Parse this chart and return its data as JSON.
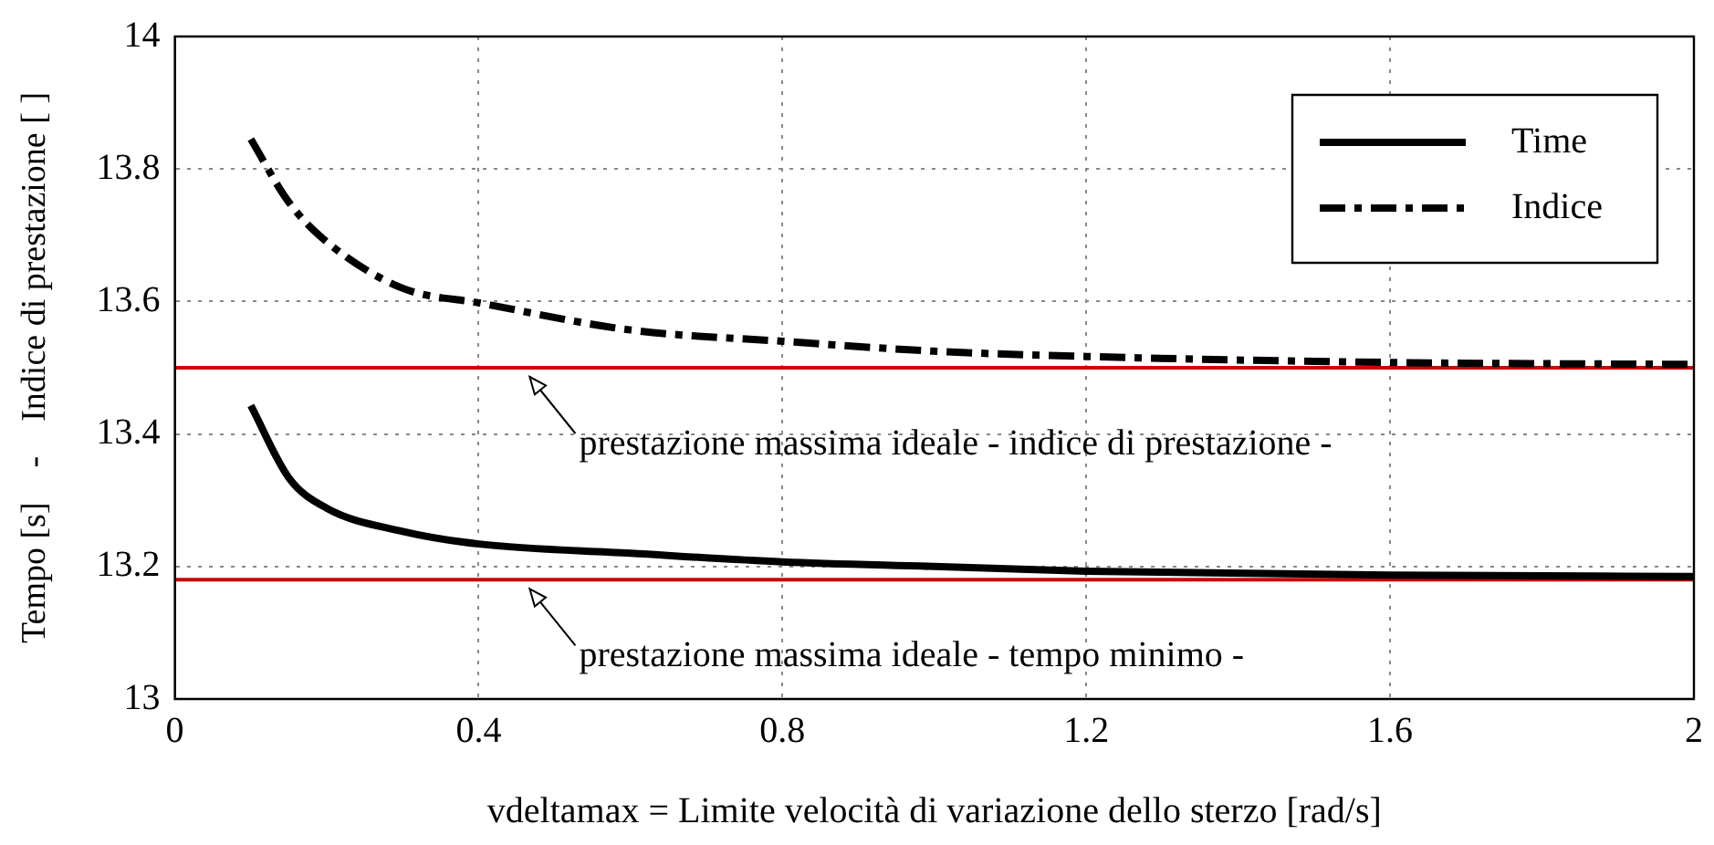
{
  "chart_data": {
    "type": "line",
    "xlabel": "vdeltamax = Limite velocità di variazione dello sterzo [rad/s]",
    "ylabel": "Tempo [s]    -    Indice di prestazione [ ]",
    "x": [
      0.1,
      0.15,
      0.2,
      0.3,
      0.4,
      0.6,
      0.8,
      1.0,
      1.2,
      1.6,
      2.0
    ],
    "series": [
      {
        "name": "Time",
        "color": "#000000",
        "line_style": "solid",
        "values": [
          13.443,
          13.334,
          13.288,
          13.253,
          13.234,
          13.22,
          13.207,
          13.2,
          13.193,
          13.187,
          13.185
        ]
      },
      {
        "name": "Indice",
        "color": "#000000",
        "line_style": "dashed",
        "values": [
          13.845,
          13.75,
          13.69,
          13.62,
          13.598,
          13.557,
          13.54,
          13.525,
          13.517,
          13.508,
          13.505
        ]
      }
    ],
    "xlim": [
      0,
      2
    ],
    "xticks": [
      0,
      0.4,
      0.8,
      1.2,
      1.6,
      2
    ],
    "ylim": [
      13,
      14
    ],
    "yticks": [
      13,
      13.2,
      13.4,
      13.6,
      13.8,
      14
    ],
    "ref_lines": [
      {
        "axis": "y",
        "value": 13.5,
        "color": "#cc0000"
      },
      {
        "axis": "y",
        "value": 13.18,
        "color": "#cc0000"
      }
    ],
    "annotations": [
      {
        "text": "prestazione massima ideale - indice di prestazione -",
        "x": 0.46,
        "y": 13.5
      },
      {
        "text": "prestazione massima ideale - tempo minimo -",
        "x": 0.46,
        "y": 13.18
      }
    ],
    "grid": true,
    "legend": "top right",
    "marker": "none"
  }
}
